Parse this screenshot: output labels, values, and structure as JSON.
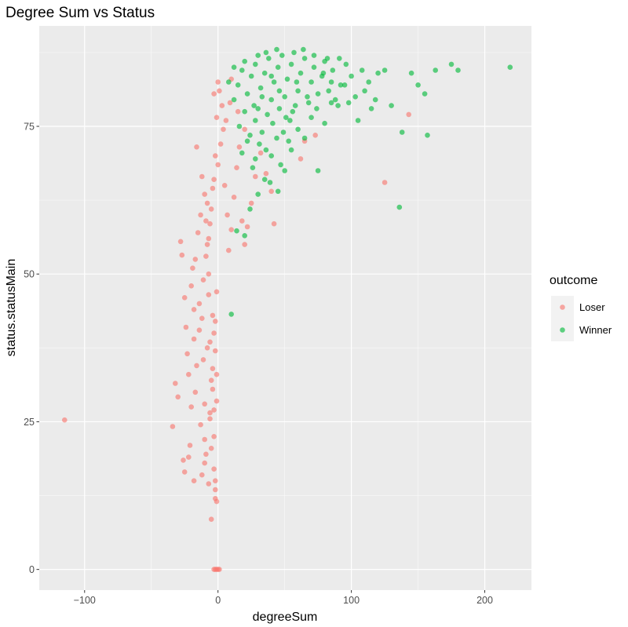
{
  "chart_data": {
    "type": "scatter",
    "title": "Degree Sum vs Status",
    "xlabel": "degreeSum",
    "ylabel": "status.statusMain",
    "xlim": [
      -134,
      235
    ],
    "ylim": [
      -3.5,
      92
    ],
    "x_ticks": [
      -100,
      0,
      100,
      200
    ],
    "y_ticks": [
      0,
      25,
      50,
      75
    ],
    "x_tick_labels": [
      "−100",
      "0",
      "100",
      "200"
    ],
    "y_tick_labels": [
      "0",
      "25",
      "50",
      "75"
    ],
    "grid": true,
    "legend": {
      "title": "outcome",
      "position": "right"
    },
    "series": [
      {
        "name": "Loser",
        "color": "#F8766D",
        "points": [
          [
            -115,
            25.3
          ],
          [
            -34,
            24.2
          ],
          [
            -32,
            31.5
          ],
          [
            -30,
            29.2
          ],
          [
            -28,
            55.5
          ],
          [
            -27,
            53.2
          ],
          [
            -26,
            18.5
          ],
          [
            -25,
            46.0
          ],
          [
            -24,
            41.0
          ],
          [
            -23,
            36.5
          ],
          [
            -22,
            33.0
          ],
          [
            -21,
            21.0
          ],
          [
            -20,
            48.0
          ],
          [
            -20,
            27.5
          ],
          [
            -19,
            51.0
          ],
          [
            -18,
            44.0
          ],
          [
            -18,
            39.0
          ],
          [
            -17,
            52.5
          ],
          [
            -17,
            30.0
          ],
          [
            -16,
            34.5
          ],
          [
            -15,
            57.0
          ],
          [
            -14,
            45.0
          ],
          [
            -14,
            40.5
          ],
          [
            -13,
            24.5
          ],
          [
            -13,
            60.0
          ],
          [
            -12,
            16.0
          ],
          [
            -12,
            42.5
          ],
          [
            -11,
            35.5
          ],
          [
            -11,
            49.0
          ],
          [
            -10,
            28.0
          ],
          [
            -10,
            22.0
          ],
          [
            -9,
            53.0
          ],
          [
            -9,
            19.5
          ],
          [
            -8,
            62.0
          ],
          [
            -8,
            37.5
          ],
          [
            -7,
            14.5
          ],
          [
            -7,
            46.5
          ],
          [
            -6,
            25.5
          ],
          [
            -6,
            58.5
          ],
          [
            -5,
            32.0
          ],
          [
            -5,
            20.5
          ],
          [
            -4,
            64.5
          ],
          [
            -4,
            43.0
          ],
          [
            -3,
            17.0
          ],
          [
            -3,
            27.0
          ],
          [
            -2,
            12.0
          ],
          [
            -2,
            13.5
          ],
          [
            -2,
            15.0
          ],
          [
            -1,
            11.5
          ],
          [
            -1,
            0.0
          ],
          [
            -2,
            0.0
          ],
          [
            -3,
            0.0
          ],
          [
            0,
            0.0
          ],
          [
            1,
            0.0
          ],
          [
            -3,
            22.5
          ],
          [
            -4,
            30.5
          ],
          [
            -6,
            38.5
          ],
          [
            -7,
            50.0
          ],
          [
            -8,
            55.0
          ],
          [
            -5,
            61.0
          ],
          [
            -3,
            66.0
          ],
          [
            0,
            68.5
          ],
          [
            2,
            72.0
          ],
          [
            -2,
            70.0
          ],
          [
            4,
            74.5
          ],
          [
            -1,
            76.5
          ],
          [
            3,
            78.5
          ],
          [
            1,
            81.0
          ],
          [
            -3,
            80.5
          ],
          [
            5,
            65.0
          ],
          [
            7,
            60.0
          ],
          [
            8,
            54.0
          ],
          [
            10,
            57.5
          ],
          [
            12,
            63.0
          ],
          [
            14,
            68.0
          ],
          [
            16,
            71.5
          ],
          [
            6,
            76.0
          ],
          [
            9,
            79.0
          ],
          [
            -16,
            71.5
          ],
          [
            -12,
            66.5
          ],
          [
            -10,
            63.5
          ],
          [
            18,
            59.0
          ],
          [
            22,
            58.0
          ],
          [
            20,
            55.0
          ],
          [
            25,
            62.0
          ],
          [
            28,
            66.5
          ],
          [
            20,
            74.5
          ],
          [
            15,
            77.5
          ],
          [
            10,
            83.0
          ],
          [
            0,
            82.5
          ],
          [
            42,
            58.5
          ],
          [
            40,
            64.0
          ],
          [
            36,
            67.0
          ],
          [
            32,
            70.5
          ],
          [
            65,
            72.5
          ],
          [
            73,
            73.5
          ],
          [
            62,
            69.5
          ],
          [
            125,
            65.5
          ],
          [
            143,
            77.0
          ],
          [
            -5,
            8.5
          ],
          [
            -18,
            15.0
          ],
          [
            -25,
            16.5
          ],
          [
            -22,
            19.0
          ],
          [
            -10,
            18.0
          ],
          [
            -6,
            26.5
          ],
          [
            -4,
            34.0
          ],
          [
            -3,
            40.0
          ],
          [
            -1,
            47.0
          ],
          [
            -7,
            56.0
          ],
          [
            -9,
            59.0
          ],
          [
            -1,
            28.5
          ],
          [
            -1,
            33.0
          ],
          [
            -2,
            37.0
          ],
          [
            -2,
            42.0
          ]
        ]
      },
      {
        "name": "Winner",
        "color": "#00BA38",
        "points": [
          [
            10,
            43.2
          ],
          [
            20,
            56.5
          ],
          [
            14,
            57.3
          ],
          [
            24,
            61.0
          ],
          [
            30,
            63.5
          ],
          [
            28,
            69.5
          ],
          [
            35,
            66.0
          ],
          [
            40,
            70.0
          ],
          [
            45,
            64.0
          ],
          [
            50,
            67.5
          ],
          [
            55,
            71.0
          ],
          [
            60,
            74.5
          ],
          [
            65,
            73.0
          ],
          [
            70,
            76.5
          ],
          [
            75,
            67.5
          ],
          [
            80,
            75.5
          ],
          [
            85,
            79.0
          ],
          [
            90,
            78.5
          ],
          [
            95,
            82.0
          ],
          [
            100,
            83.5
          ],
          [
            105,
            76.0
          ],
          [
            110,
            81.0
          ],
          [
            115,
            78.0
          ],
          [
            120,
            84.0
          ],
          [
            125,
            84.5
          ],
          [
            130,
            78.5
          ],
          [
            136,
            61.3
          ],
          [
            138,
            74.0
          ],
          [
            145,
            84.0
          ],
          [
            150,
            82.0
          ],
          [
            155,
            80.5
          ],
          [
            157,
            73.5
          ],
          [
            163,
            84.5
          ],
          [
            175,
            85.5
          ],
          [
            180,
            84.5
          ],
          [
            219,
            85.0
          ],
          [
            12,
            79.5
          ],
          [
            15,
            82.0
          ],
          [
            18,
            84.5
          ],
          [
            20,
            86.0
          ],
          [
            22,
            80.5
          ],
          [
            25,
            83.5
          ],
          [
            28,
            85.5
          ],
          [
            30,
            78.0
          ],
          [
            32,
            81.5
          ],
          [
            35,
            84.0
          ],
          [
            38,
            86.5
          ],
          [
            40,
            79.5
          ],
          [
            42,
            82.5
          ],
          [
            45,
            85.0
          ],
          [
            48,
            87.0
          ],
          [
            50,
            80.0
          ],
          [
            52,
            83.0
          ],
          [
            55,
            85.5
          ],
          [
            58,
            78.5
          ],
          [
            60,
            81.0
          ],
          [
            62,
            84.0
          ],
          [
            65,
            86.5
          ],
          [
            68,
            79.0
          ],
          [
            70,
            82.5
          ],
          [
            72,
            85.0
          ],
          [
            75,
            80.5
          ],
          [
            78,
            83.5
          ],
          [
            80,
            86.0
          ],
          [
            83,
            81.0
          ],
          [
            86,
            84.5
          ],
          [
            88,
            79.5
          ],
          [
            92,
            82.0
          ],
          [
            96,
            85.5
          ],
          [
            16,
            75.0
          ],
          [
            20,
            77.5
          ],
          [
            24,
            73.5
          ],
          [
            28,
            76.0
          ],
          [
            33,
            74.0
          ],
          [
            37,
            77.0
          ],
          [
            41,
            75.5
          ],
          [
            46,
            78.0
          ],
          [
            51,
            76.5
          ],
          [
            56,
            77.5
          ],
          [
            18,
            70.5
          ],
          [
            22,
            72.5
          ],
          [
            26,
            68.0
          ],
          [
            31,
            72.0
          ],
          [
            36,
            71.0
          ],
          [
            44,
            73.0
          ],
          [
            49,
            74.0
          ],
          [
            54,
            76.0
          ],
          [
            30,
            87.0
          ],
          [
            36,
            87.5
          ],
          [
            44,
            88.0
          ],
          [
            57,
            87.5
          ],
          [
            64,
            88.0
          ],
          [
            72,
            87.0
          ],
          [
            82,
            86.5
          ],
          [
            12,
            85.0
          ],
          [
            8,
            82.5
          ],
          [
            40,
            83.5
          ],
          [
            46,
            81.0
          ],
          [
            33,
            80.0
          ],
          [
            27,
            78.5
          ],
          [
            59,
            82.5
          ],
          [
            67,
            80.0
          ],
          [
            74,
            78.0
          ],
          [
            79,
            84.0
          ],
          [
            85,
            82.5
          ],
          [
            91,
            86.5
          ],
          [
            98,
            79.0
          ],
          [
            103,
            80.0
          ],
          [
            108,
            84.5
          ],
          [
            113,
            82.5
          ],
          [
            118,
            79.5
          ],
          [
            47,
            68.5
          ],
          [
            39,
            65.5
          ],
          [
            53,
            72.5
          ]
        ]
      }
    ]
  }
}
